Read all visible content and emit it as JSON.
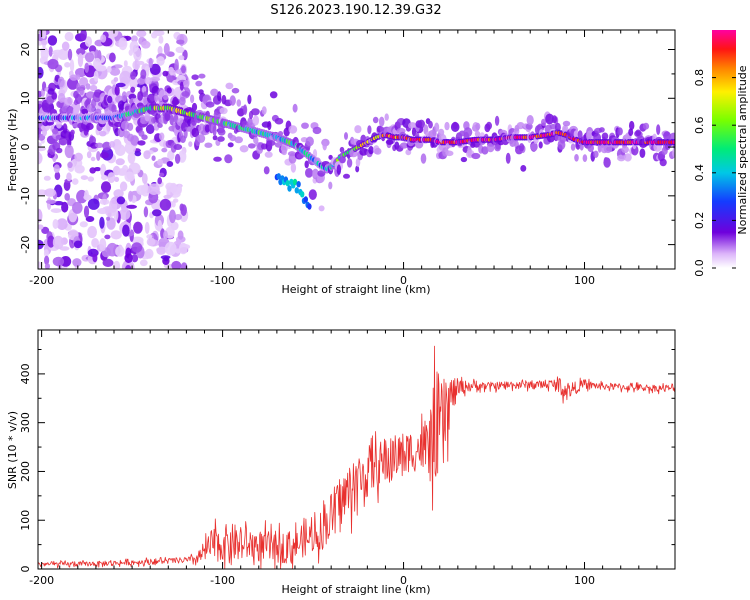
{
  "title": "S126.2023.190.12.39.G32",
  "chart_data": [
    {
      "type": "heatmap",
      "xlabel": "Height of straight line (km)",
      "ylabel": "Frequency (Hz)",
      "xlim": [
        -202,
        150
      ],
      "ylim": [
        -25,
        24
      ],
      "xticks": [
        -200,
        -100,
        0,
        100
      ],
      "yticks": [
        -20,
        -10,
        0,
        10,
        20
      ],
      "colorbar": {
        "label": "Normalized spectral amplitude",
        "ticks": [
          0.0,
          0.2,
          0.4,
          0.6,
          0.8
        ],
        "ticklabels": [
          "0.0",
          "0.2",
          "0.4",
          "0.6",
          "0.8"
        ],
        "range": [
          0,
          1
        ]
      },
      "ridge": {
        "x": [
          -200,
          -180,
          -160,
          -150,
          -140,
          -130,
          -120,
          -110,
          -100,
          -90,
          -80,
          -70,
          -60,
          -55,
          -50,
          -45,
          -42,
          -38,
          -35,
          -30,
          -25,
          -20,
          -15,
          -10,
          -5,
          0,
          5,
          10,
          15,
          20,
          30,
          40,
          50,
          60,
          70,
          80,
          85,
          90,
          95,
          100,
          110,
          120,
          130,
          140,
          150
        ],
        "freq": [
          6,
          6,
          6,
          7,
          8,
          8,
          7,
          6,
          5,
          4,
          3,
          2,
          0.5,
          -1,
          -2.5,
          -4,
          -4.5,
          -3.5,
          -2,
          -1,
          0,
          1,
          2,
          2.5,
          2,
          2,
          1.5,
          1.5,
          1.5,
          1,
          1,
          1.5,
          1.5,
          2,
          2,
          2.5,
          3,
          2.5,
          1.5,
          1,
          1,
          1,
          1,
          1,
          1
        ],
        "amplitude": [
          0.25,
          0.3,
          0.35,
          0.45,
          0.6,
          0.65,
          0.65,
          0.55,
          0.5,
          0.45,
          0.45,
          0.45,
          0.5,
          0.45,
          0.4,
          0.35,
          0.4,
          0.5,
          0.55,
          0.6,
          0.65,
          0.7,
          0.8,
          0.85,
          0.9,
          0.9,
          0.95,
          0.95,
          0.95,
          0.95,
          0.95,
          0.95,
          0.95,
          0.95,
          0.95,
          0.95,
          0.95,
          0.95,
          0.95,
          0.95,
          0.95,
          0.95,
          0.95,
          0.95,
          0.95
        ]
      },
      "secondary_branch": {
        "x": [
          -70,
          -65,
          -60,
          -55,
          -52
        ],
        "freq": [
          -6,
          -7,
          -8.5,
          -10,
          -12
        ],
        "amplitude": [
          0.3,
          0.35,
          0.4,
          0.35,
          0.25
        ]
      },
      "noise_region_x": [
        -202,
        -120
      ]
    },
    {
      "type": "line",
      "xlabel": "Height of straight line (km)",
      "ylabel": "SNR (10 * v/v)",
      "xlim": [
        -202,
        150
      ],
      "ylim": [
        0,
        490
      ],
      "xticks": [
        -200,
        -100,
        0,
        100
      ],
      "yticks": [
        0,
        100,
        200,
        300,
        400
      ],
      "color": "#e8302e",
      "series_envelope": {
        "x": [
          -202,
          -180,
          -160,
          -140,
          -120,
          -115,
          -105,
          -95,
          -85,
          -75,
          -65,
          -55,
          -50,
          -45,
          -40,
          -35,
          -30,
          -25,
          -20,
          -15,
          -10,
          -5,
          0,
          5,
          10,
          12,
          15,
          18,
          20,
          23,
          25,
          28,
          30,
          35,
          40,
          50,
          60,
          70,
          80,
          85,
          90,
          95,
          100,
          110,
          120,
          130,
          140,
          150
        ],
        "mean": [
          10,
          10,
          12,
          15,
          18,
          20,
          50,
          55,
          50,
          45,
          45,
          55,
          70,
          80,
          110,
          140,
          160,
          180,
          200,
          210,
          220,
          230,
          240,
          240,
          250,
          230,
          260,
          300,
          280,
          300,
          340,
          360,
          372,
          375,
          375,
          375,
          378,
          378,
          378,
          378,
          365,
          372,
          378,
          375,
          373,
          372,
          371,
          370
        ],
        "spread": [
          8,
          8,
          8,
          10,
          10,
          15,
          60,
          65,
          55,
          55,
          55,
          50,
          60,
          70,
          80,
          90,
          95,
          95,
          90,
          80,
          80,
          75,
          70,
          70,
          80,
          120,
          150,
          180,
          200,
          150,
          100,
          60,
          30,
          18,
          15,
          14,
          14,
          14,
          14,
          25,
          35,
          20,
          14,
          12,
          12,
          12,
          12,
          12
        ]
      }
    }
  ]
}
